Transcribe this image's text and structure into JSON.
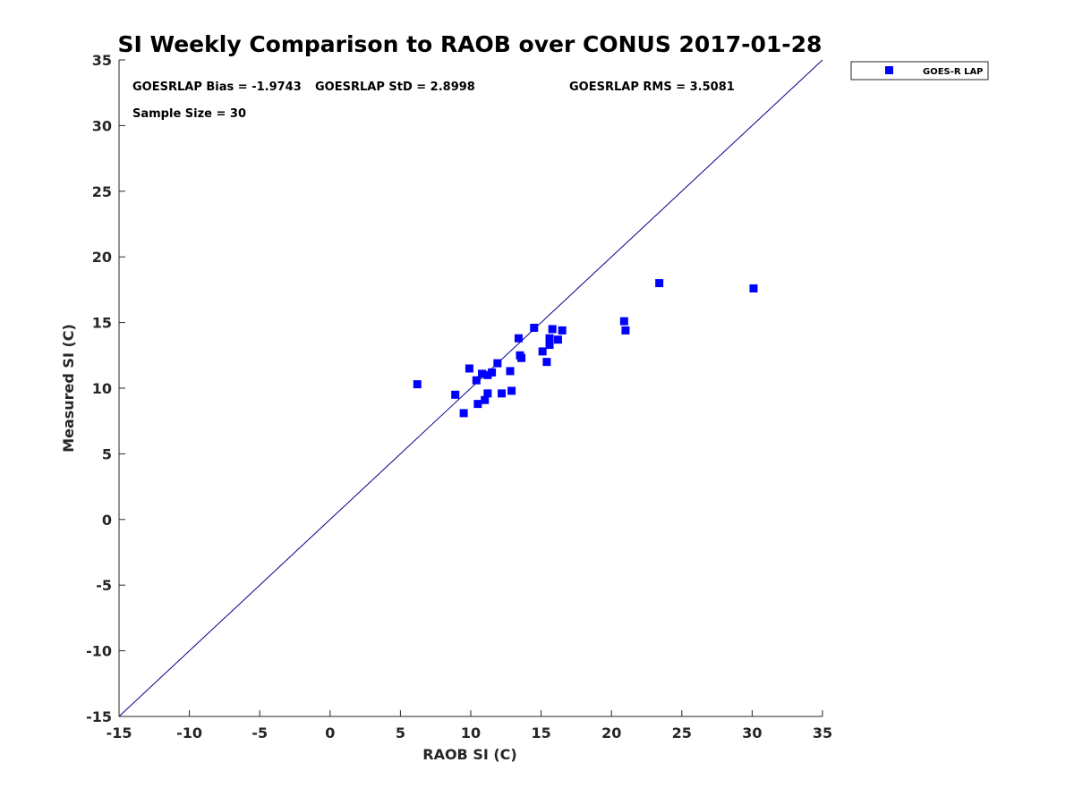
{
  "chart_data": {
    "type": "scatter",
    "title": "SI Weekly Comparison to RAOB over CONUS 2017-01-28",
    "xlabel": "RAOB SI (C)",
    "ylabel": "Measured SI (C)",
    "xlim": [
      -15,
      35
    ],
    "ylim": [
      -15,
      35
    ],
    "xticks": [
      "-15",
      "-10",
      "-5",
      "0",
      "5",
      "10",
      "15",
      "20",
      "25",
      "30",
      "35"
    ],
    "yticks": [
      "-15",
      "-10",
      "-5",
      "0",
      "5",
      "10",
      "15",
      "20",
      "25",
      "30",
      "35"
    ],
    "reference_line": {
      "name": "1:1 line",
      "x": [
        -15,
        35
      ],
      "y": [
        -15,
        35
      ],
      "color": "#00008b"
    },
    "annotations": {
      "bias": "GOESRLAP Bias = -1.9743",
      "std": "GOESRLAP StD = 2.8998",
      "rms": "GOESRLAP RMS = 3.5081",
      "sample_size": "Sample Size = 30"
    },
    "legend": {
      "position": "outside-top-right",
      "entries": [
        "GOES-R LAP"
      ]
    },
    "series": [
      {
        "name": "GOES-R LAP",
        "color": "#0000ff",
        "marker": "square",
        "points": [
          [
            6.2,
            10.3
          ],
          [
            8.9,
            9.5
          ],
          [
            9.5,
            8.1
          ],
          [
            9.9,
            11.5
          ],
          [
            10.4,
            10.6
          ],
          [
            10.5,
            8.8
          ],
          [
            10.8,
            11.1
          ],
          [
            11.0,
            9.1
          ],
          [
            11.2,
            9.6
          ],
          [
            11.2,
            11.0
          ],
          [
            11.5,
            11.2
          ],
          [
            11.9,
            11.9
          ],
          [
            12.2,
            9.6
          ],
          [
            12.8,
            11.3
          ],
          [
            12.9,
            9.8
          ],
          [
            13.4,
            13.8
          ],
          [
            13.5,
            12.5
          ],
          [
            13.6,
            12.3
          ],
          [
            14.5,
            14.6
          ],
          [
            15.1,
            12.8
          ],
          [
            15.4,
            12.0
          ],
          [
            15.6,
            13.3
          ],
          [
            15.6,
            13.8
          ],
          [
            15.8,
            14.5
          ],
          [
            16.2,
            13.7
          ],
          [
            16.5,
            14.4
          ],
          [
            20.9,
            15.1
          ],
          [
            21.0,
            14.4
          ],
          [
            23.4,
            18.0
          ],
          [
            30.1,
            17.6
          ]
        ]
      }
    ]
  }
}
